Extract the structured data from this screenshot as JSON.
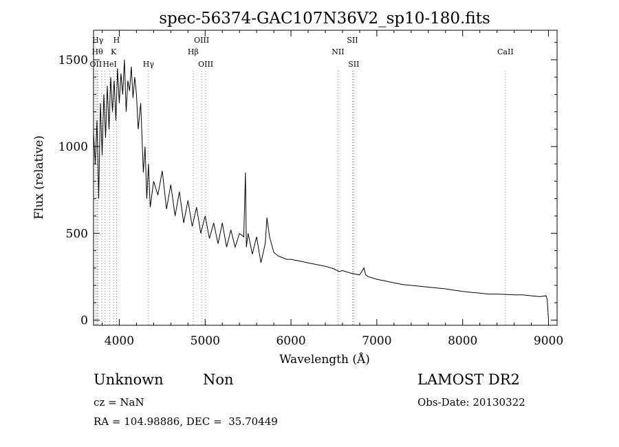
{
  "chart_data": {
    "type": "line",
    "title": "spec-56374-GAC107N36V2_sp10-180.fits",
    "xlabel": "Wavelength (Å)",
    "ylabel": "Flux (relative)",
    "xlim": [
      3700,
      9100
    ],
    "ylim": [
      -30,
      1670
    ],
    "xticks": [
      4000,
      5000,
      6000,
      7000,
      8000,
      9000
    ],
    "xtick_labels": [
      "4000",
      "5000",
      "6000",
      "7000",
      "8000",
      "9000"
    ],
    "yticks": [
      0,
      500,
      1000,
      1500
    ],
    "ytick_labels": [
      "0",
      "500",
      "1000",
      "1500"
    ],
    "grid": false,
    "line_color": "#000000",
    "marker_color": "#d02020",
    "series": [
      {
        "x": [
          3700,
          3720,
          3740,
          3760,
          3780,
          3800,
          3820,
          3840,
          3860,
          3880,
          3900,
          3920,
          3940,
          3960,
          3980,
          4000,
          4020,
          4040,
          4060,
          4080,
          4100,
          4120,
          4140,
          4160,
          4180,
          4200,
          4220,
          4250,
          4280,
          4300,
          4320,
          4340,
          4360,
          4400,
          4450,
          4500,
          4550,
          4600,
          4650,
          4700,
          4750,
          4800,
          4850,
          4900,
          4950,
          5000,
          5050,
          5100,
          5150,
          5200,
          5250,
          5300,
          5350,
          5400,
          5450,
          5470,
          5480,
          5500,
          5550,
          5600,
          5650,
          5700,
          5720,
          5750,
          5800,
          5850,
          5900,
          5950,
          6000,
          6100,
          6200,
          6300,
          6400,
          6500,
          6560,
          6600,
          6700,
          6800,
          6850,
          6870,
          6900,
          7000,
          7100,
          7200,
          7300,
          7400,
          7500,
          7600,
          7700,
          7800,
          7900,
          8000,
          8100,
          8200,
          8300,
          8400,
          8500,
          8600,
          8700,
          8800,
          8900,
          8970,
          8985,
          9000
        ],
        "y": [
          1080,
          900,
          1150,
          700,
          1250,
          950,
          1300,
          1050,
          1350,
          1100,
          1400,
          1200,
          1380,
          1150,
          1450,
          1250,
          1420,
          1300,
          1500,
          1200,
          1380,
          1320,
          1460,
          1280,
          1400,
          1300,
          1100,
          1250,
          850,
          1000,
          700,
          900,
          650,
          800,
          720,
          860,
          640,
          780,
          600,
          740,
          560,
          690,
          540,
          650,
          500,
          600,
          470,
          560,
          440,
          560,
          420,
          520,
          420,
          500,
          480,
          850,
          420,
          500,
          380,
          480,
          330,
          440,
          590,
          480,
          390,
          370,
          360,
          350,
          350,
          340,
          330,
          320,
          310,
          295,
          280,
          285,
          270,
          260,
          300,
          260,
          250,
          235,
          225,
          215,
          205,
          200,
          195,
          190,
          185,
          180,
          172,
          165,
          160,
          155,
          150,
          150,
          148,
          145,
          145,
          140,
          135,
          140,
          120,
          0
        ]
      }
    ],
    "lines": [
      {
        "label": "Hγ",
        "wavelength": 3750,
        "row": 1
      },
      {
        "label": "Hθ",
        "wavelength": 3745,
        "row": 2
      },
      {
        "label": "OII",
        "wavelength": 3727,
        "row": 3
      },
      {
        "label": "H",
        "wavelength": 3968,
        "row": 1
      },
      {
        "label": "K",
        "wavelength": 3933,
        "row": 2
      },
      {
        "label": "HeI",
        "wavelength": 3889,
        "row": 3
      },
      {
        "label": "Hγ",
        "wavelength": 4340,
        "row": 3
      },
      {
        "label": "OIII",
        "wavelength": 4959,
        "row": 1
      },
      {
        "label": "Hβ",
        "wavelength": 4861,
        "row": 2
      },
      {
        "label": "OIII",
        "wavelength": 5007,
        "row": 3
      },
      {
        "label": "SII",
        "wavelength": 6716,
        "row": 1
      },
      {
        "label": "NII",
        "wavelength": 6548,
        "row": 2
      },
      {
        "label": "SII",
        "wavelength": 6731,
        "row": 3
      },
      {
        "label": "CaII",
        "wavelength": 8498,
        "row": 2
      }
    ],
    "extra_line_wavelengths": [
      3798,
      3835
    ]
  },
  "info": {
    "class": "Unknown",
    "subclass": "Non",
    "cz": "cz = NaN",
    "coords": "RA = 104.98886, DEC =  35.70449",
    "survey": "LAMOST DR2",
    "obs_date": "Obs-Date: 20130322"
  }
}
